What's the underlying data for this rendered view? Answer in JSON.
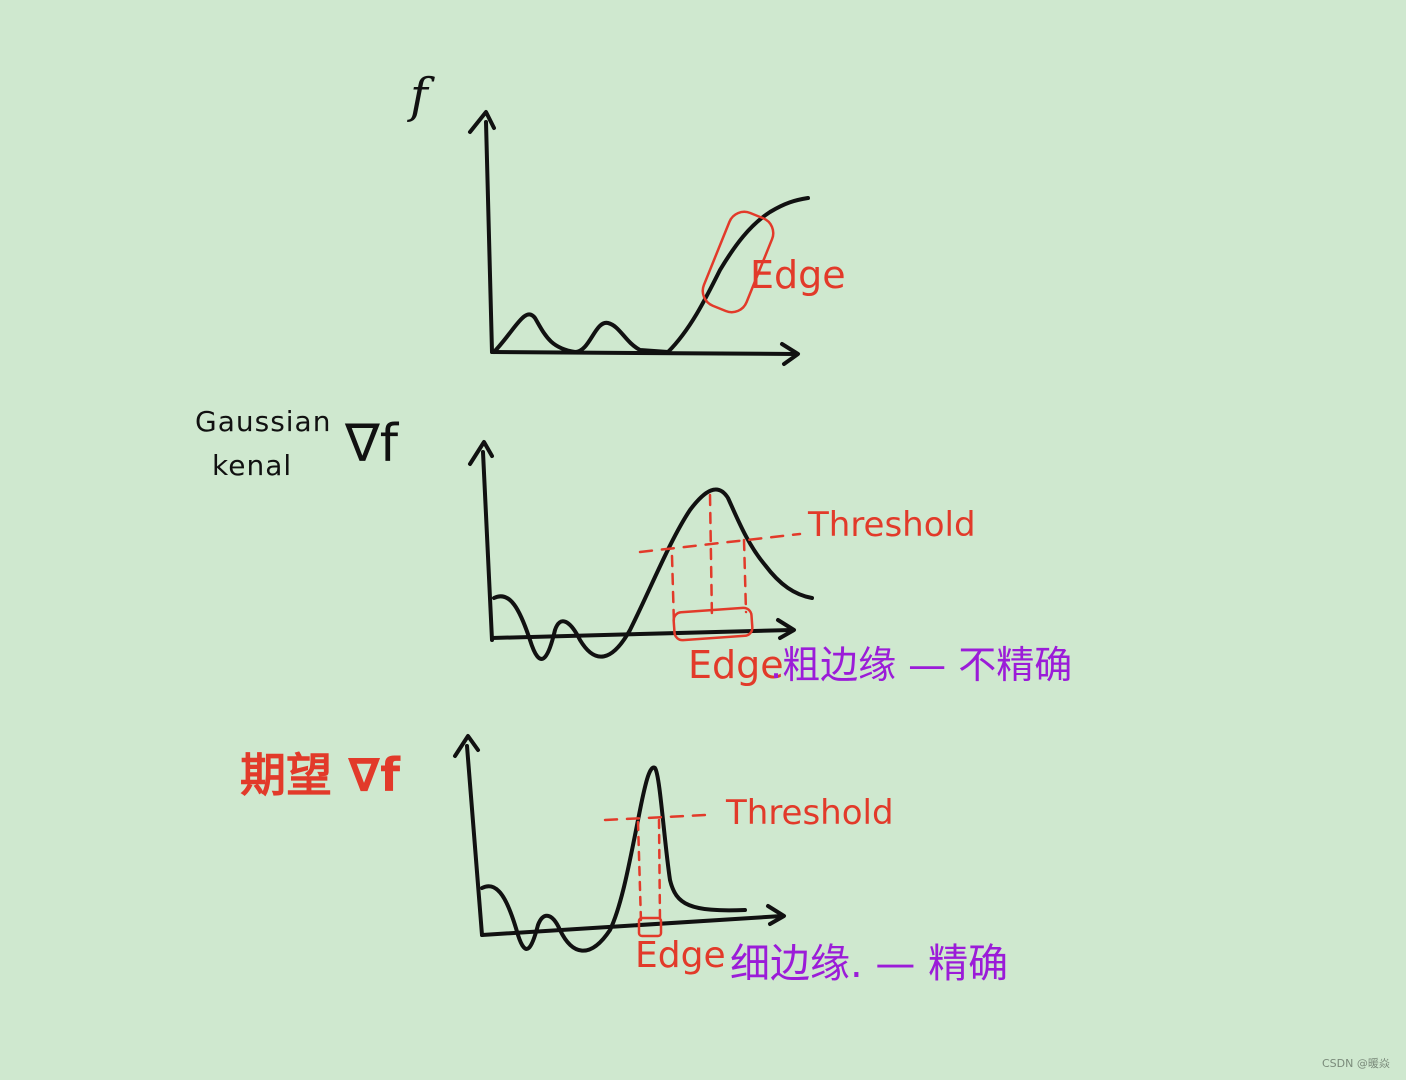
{
  "labels": {
    "f": "f",
    "gaussian": "Gaussian",
    "kenal": "kenal",
    "grad_f": "∇f",
    "expectation": "期望 ∇f",
    "edge_top": "Edge",
    "threshold_mid": "Threshold",
    "edge_mid": "Edge",
    "desc_mid": ".粗边缘 — 不精确",
    "threshold_bottom": "Threshold",
    "edge_bottom": "Edge",
    "desc_bottom": "细边缘. — 精确",
    "watermark": "CSDN @暖焱"
  },
  "colors": {
    "background": "#cfe8cf",
    "ink": "#111111",
    "annotation_red": "#e23a2a",
    "annotation_purple": "#9b1cd8"
  }
}
